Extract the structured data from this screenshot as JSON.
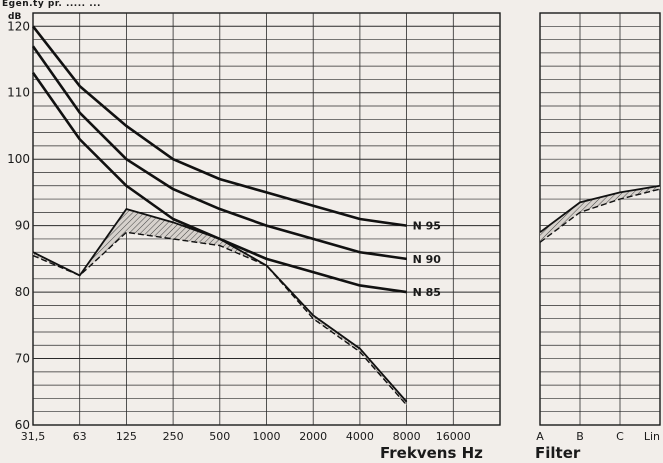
{
  "page": {
    "top_text": "Egen.ty  pr. ..... ..."
  },
  "chart_data": [
    {
      "type": "line",
      "ylabel": "dB",
      "xlabel": "Frekvens Hz",
      "ylim": [
        60,
        122
      ],
      "yticks": [
        60,
        70,
        80,
        90,
        100,
        110,
        120
      ],
      "categories": [
        "31,5",
        "63",
        "125",
        "250",
        "500",
        "1000",
        "2000",
        "4000",
        "8000",
        "16000"
      ],
      "grid": true,
      "series": [
        {
          "name": "N 95",
          "style": "solid-thick",
          "x": [
            "31,5",
            "63",
            "125",
            "250",
            "500",
            "1000",
            "2000",
            "4000",
            "8000"
          ],
          "values": [
            120,
            111,
            105,
            100,
            97,
            95,
            93,
            91,
            90
          ]
        },
        {
          "name": "N 90",
          "style": "solid-thick",
          "x": [
            "31,5",
            "63",
            "125",
            "250",
            "500",
            "1000",
            "2000",
            "4000",
            "8000"
          ],
          "values": [
            117,
            107,
            100,
            95.5,
            92.5,
            90,
            88,
            86,
            85
          ]
        },
        {
          "name": "N 85",
          "style": "solid-thick",
          "x": [
            "31,5",
            "63",
            "125",
            "250",
            "500",
            "1000",
            "2000",
            "4000",
            "8000"
          ],
          "values": [
            113,
            103,
            96,
            91,
            88,
            85,
            83,
            81,
            80
          ]
        },
        {
          "name": "",
          "style": "solid",
          "x": [
            "31,5",
            "63",
            "125",
            "250",
            "500",
            "1000",
            "2000",
            "4000",
            "8000"
          ],
          "values": [
            86,
            82.5,
            92.5,
            90.5,
            88,
            84,
            76.5,
            71.5,
            63.5
          ]
        },
        {
          "name": "",
          "style": "dashed",
          "x": [
            "31,5",
            "63",
            "125",
            "250",
            "500",
            "1000",
            "2000",
            "4000",
            "8000"
          ],
          "values": [
            85.5,
            82.5,
            89,
            88,
            87,
            84,
            76,
            71,
            63
          ]
        }
      ],
      "shaded_between_series": [
        3,
        4
      ]
    },
    {
      "type": "line",
      "xlabel": "Filter",
      "ylim": [
        60,
        122
      ],
      "categories": [
        "A",
        "B",
        "C",
        "Lin"
      ],
      "grid": true,
      "series": [
        {
          "name": "",
          "style": "solid",
          "values": [
            89,
            93.5,
            95,
            96
          ]
        },
        {
          "name": "",
          "style": "dashed",
          "values": [
            87.5,
            92,
            94,
            95.5
          ]
        }
      ],
      "shaded_between_series": [
        0,
        1
      ]
    }
  ]
}
